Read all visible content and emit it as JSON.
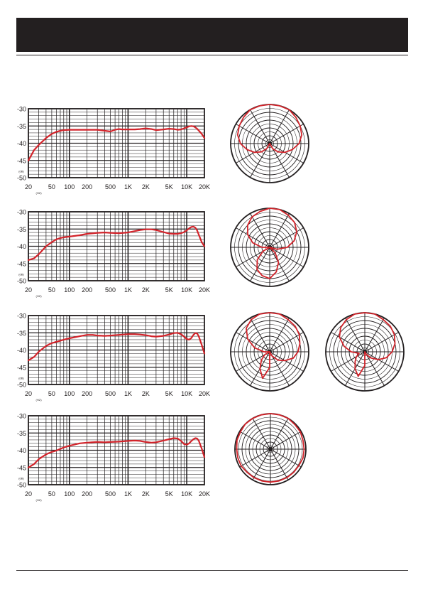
{
  "colors": {
    "header": "#231f20",
    "grid": "#231f20",
    "curve": "#d2232a"
  },
  "chart_data": [
    {
      "type": "line",
      "xscale": "log",
      "xlim": [
        20,
        20000
      ],
      "ylim": [
        -50,
        -30
      ],
      "x_ticks": [
        20,
        50,
        100,
        200,
        500,
        1000,
        2000,
        5000,
        10000,
        20000
      ],
      "x_tick_labels": [
        "20",
        "50",
        "100",
        "200",
        "500",
        "1K",
        "2K",
        "5K",
        "10K",
        "20K"
      ],
      "y_ticks": [
        -30,
        -35,
        -40,
        -45,
        -50
      ],
      "y_tick_labels": [
        "-30",
        "-35",
        "-40",
        "-45",
        "-50"
      ],
      "x_unit": "(HZ)",
      "y_unit": "(dB)",
      "grid": true,
      "series": [
        {
          "x": [
            20,
            25,
            30,
            40,
            50,
            60,
            70,
            80,
            100,
            150,
            200,
            300,
            400,
            500,
            600,
            700,
            800,
            1000,
            1300,
            1600,
            2000,
            2500,
            3000,
            4000,
            5000,
            6000,
            7000,
            8000,
            9000,
            10000,
            11000,
            12000,
            13000,
            14000,
            15000,
            16000,
            18000,
            20000
          ],
          "y": [
            -45,
            -42,
            -40.5,
            -38.5,
            -37.3,
            -36.7,
            -36.4,
            -36.2,
            -36.1,
            -36.1,
            -36.1,
            -36.1,
            -36.4,
            -36.6,
            -36.1,
            -35.9,
            -36,
            -36,
            -36,
            -35.9,
            -35.7,
            -35.9,
            -36.2,
            -36,
            -35.8,
            -35.9,
            -36.1,
            -36,
            -35.7,
            -35.4,
            -35.1,
            -35,
            -35.1,
            -35.4,
            -35.8,
            -36.3,
            -37.3,
            -38.5
          ]
        }
      ]
    },
    {
      "type": "line",
      "xscale": "log",
      "xlim": [
        20,
        20000
      ],
      "ylim": [
        -50,
        -30
      ],
      "x_ticks": [
        20,
        50,
        100,
        200,
        500,
        1000,
        2000,
        5000,
        10000,
        20000
      ],
      "x_tick_labels": [
        "20",
        "50",
        "100",
        "200",
        "500",
        "1K",
        "2K",
        "5K",
        "10K",
        "20K"
      ],
      "y_ticks": [
        -30,
        -35,
        -40,
        -45,
        -50
      ],
      "y_tick_labels": [
        "-30",
        "-35",
        "-40",
        "-45",
        "-50"
      ],
      "x_unit": "(HZ)",
      "y_unit": "(dB)",
      "grid": true,
      "series": [
        {
          "x": [
            20,
            25,
            30,
            40,
            50,
            60,
            70,
            80,
            100,
            150,
            200,
            300,
            400,
            500,
            700,
            1000,
            1300,
            1600,
            2000,
            2500,
            3000,
            4000,
            5000,
            6000,
            7000,
            8000,
            9000,
            10000,
            11000,
            12000,
            13000,
            14000,
            15000,
            16000,
            18000,
            20000
          ],
          "y": [
            -44,
            -43.5,
            -42.3,
            -40,
            -38.8,
            -38,
            -37.6,
            -37.4,
            -37.2,
            -36.8,
            -36.4,
            -36.1,
            -36,
            -36.1,
            -36.2,
            -36,
            -35.6,
            -35.3,
            -35.1,
            -35.1,
            -35.3,
            -35.9,
            -36.3,
            -36.4,
            -36.4,
            -36.2,
            -35.9,
            -35.4,
            -34.8,
            -34.4,
            -34.3,
            -34.6,
            -35.4,
            -36.6,
            -38.8,
            -40
          ]
        }
      ]
    },
    {
      "type": "line",
      "xscale": "log",
      "xlim": [
        20,
        20000
      ],
      "ylim": [
        -50,
        -30
      ],
      "x_ticks": [
        20,
        50,
        100,
        200,
        500,
        1000,
        2000,
        5000,
        10000,
        20000
      ],
      "x_tick_labels": [
        "20",
        "50",
        "100",
        "200",
        "500",
        "1K",
        "2K",
        "5K",
        "10K",
        "20K"
      ],
      "y_ticks": [
        -30,
        -35,
        -40,
        -45,
        -50
      ],
      "y_tick_labels": [
        "-30",
        "-35",
        "-40",
        "-45",
        "-50"
      ],
      "x_unit": "(HZ)",
      "y_unit": "(dB)",
      "grid": true,
      "series": [
        {
          "x": [
            20,
            25,
            30,
            40,
            50,
            60,
            70,
            80,
            100,
            150,
            200,
            250,
            300,
            400,
            500,
            700,
            1000,
            1300,
            1600,
            2000,
            2500,
            3000,
            4000,
            5000,
            6000,
            7000,
            8000,
            9000,
            10000,
            11000,
            12000,
            13000,
            14000,
            15000,
            16000,
            18000,
            20000
          ],
          "y": [
            -43,
            -42,
            -40.5,
            -38.8,
            -38,
            -37.6,
            -37.3,
            -37,
            -36.6,
            -36,
            -35.6,
            -35.6,
            -35.8,
            -35.9,
            -35.8,
            -35.6,
            -35.4,
            -35.4,
            -35.5,
            -35.7,
            -36,
            -36.1,
            -35.9,
            -35.5,
            -35.1,
            -35,
            -35.4,
            -36.1,
            -36.8,
            -37,
            -36.5,
            -35.6,
            -35.1,
            -35.2,
            -36,
            -38.5,
            -41
          ]
        }
      ]
    },
    {
      "type": "line",
      "xscale": "log",
      "xlim": [
        20,
        20000
      ],
      "ylim": [
        -50,
        -30
      ],
      "x_ticks": [
        20,
        50,
        100,
        200,
        500,
        1000,
        2000,
        5000,
        10000,
        20000
      ],
      "x_tick_labels": [
        "20",
        "50",
        "100",
        "200",
        "500",
        "1K",
        "2K",
        "5K",
        "10K",
        "20K"
      ],
      "y_ticks": [
        -30,
        -35,
        -40,
        -45,
        -50
      ],
      "y_tick_labels": [
        "-30",
        "-35",
        "-40",
        "-45",
        "-50"
      ],
      "x_unit": "(HZ)",
      "y_unit": "(dB)",
      "grid": true,
      "series": [
        {
          "x": [
            20,
            25,
            30,
            40,
            50,
            60,
            70,
            80,
            100,
            150,
            200,
            300,
            400,
            500,
            700,
            1000,
            1300,
            1600,
            2000,
            2500,
            3000,
            4000,
            5000,
            6000,
            7000,
            8000,
            9000,
            10000,
            11000,
            12000,
            13000,
            14000,
            15000,
            16000,
            18000,
            20000
          ],
          "y": [
            -45,
            -44,
            -42.6,
            -41.2,
            -40.5,
            -40.1,
            -39.6,
            -39.2,
            -38.7,
            -38,
            -37.8,
            -37.6,
            -37.7,
            -37.6,
            -37.5,
            -37.3,
            -37.2,
            -37.3,
            -37.6,
            -37.8,
            -37.7,
            -37.2,
            -36.8,
            -36.5,
            -36.6,
            -37.3,
            -38.2,
            -38.4,
            -38,
            -37.3,
            -36.8,
            -36.5,
            -36.6,
            -37.2,
            -39.5,
            -42
          ]
        }
      ]
    }
  ],
  "polar_data": [
    {
      "type": "polar",
      "rings_db": 20,
      "r_db": [
        0,
        0,
        0,
        -1,
        -2,
        -3,
        -5,
        -8,
        -11,
        -14,
        -17,
        -20,
        -20,
        -20,
        -17,
        -14,
        -11,
        -8,
        -5,
        -3,
        -2,
        -1,
        0,
        0
      ]
    },
    {
      "type": "polar",
      "rings_db": 20,
      "r_db": [
        0,
        0,
        -1,
        -2,
        -4,
        -7,
        -11,
        -16,
        -20,
        -16,
        -11,
        -7,
        -4,
        -5,
        -7,
        -11,
        -16,
        -20,
        -16,
        -11,
        -7,
        -4,
        -2,
        -1
      ]
    },
    {
      "type": "polar",
      "rings_db": 20,
      "r_db": [
        0,
        0,
        -1,
        -1.5,
        -2.5,
        -4,
        -5.5,
        -7.5,
        -11,
        -14,
        -17.5,
        -20,
        -12,
        -6,
        -10,
        -14,
        -17,
        -20,
        -17,
        -12,
        -7,
        -3,
        -1,
        0
      ]
    },
    {
      "type": "polar",
      "rings_db": 20,
      "r_db": [
        0,
        0,
        -1,
        -1.5,
        -2.5,
        -4,
        -6,
        -8.5,
        -12,
        -15.5,
        -18.5,
        -20,
        -13,
        -7,
        -10,
        -13,
        -15,
        -17,
        -13,
        -9,
        -5,
        -2.5,
        -1,
        0
      ]
    },
    {
      "type": "polar",
      "rings_db": 20,
      "r_db": [
        0,
        0,
        0,
        -0.5,
        -0.5,
        -1,
        -1,
        -1,
        -1.5,
        -1.5,
        -1.5,
        -1.5,
        -1.5,
        -1.5,
        -1.5,
        -1.5,
        -1,
        -1,
        -1,
        -0.5,
        -0.5,
        0,
        0,
        0
      ]
    }
  ]
}
